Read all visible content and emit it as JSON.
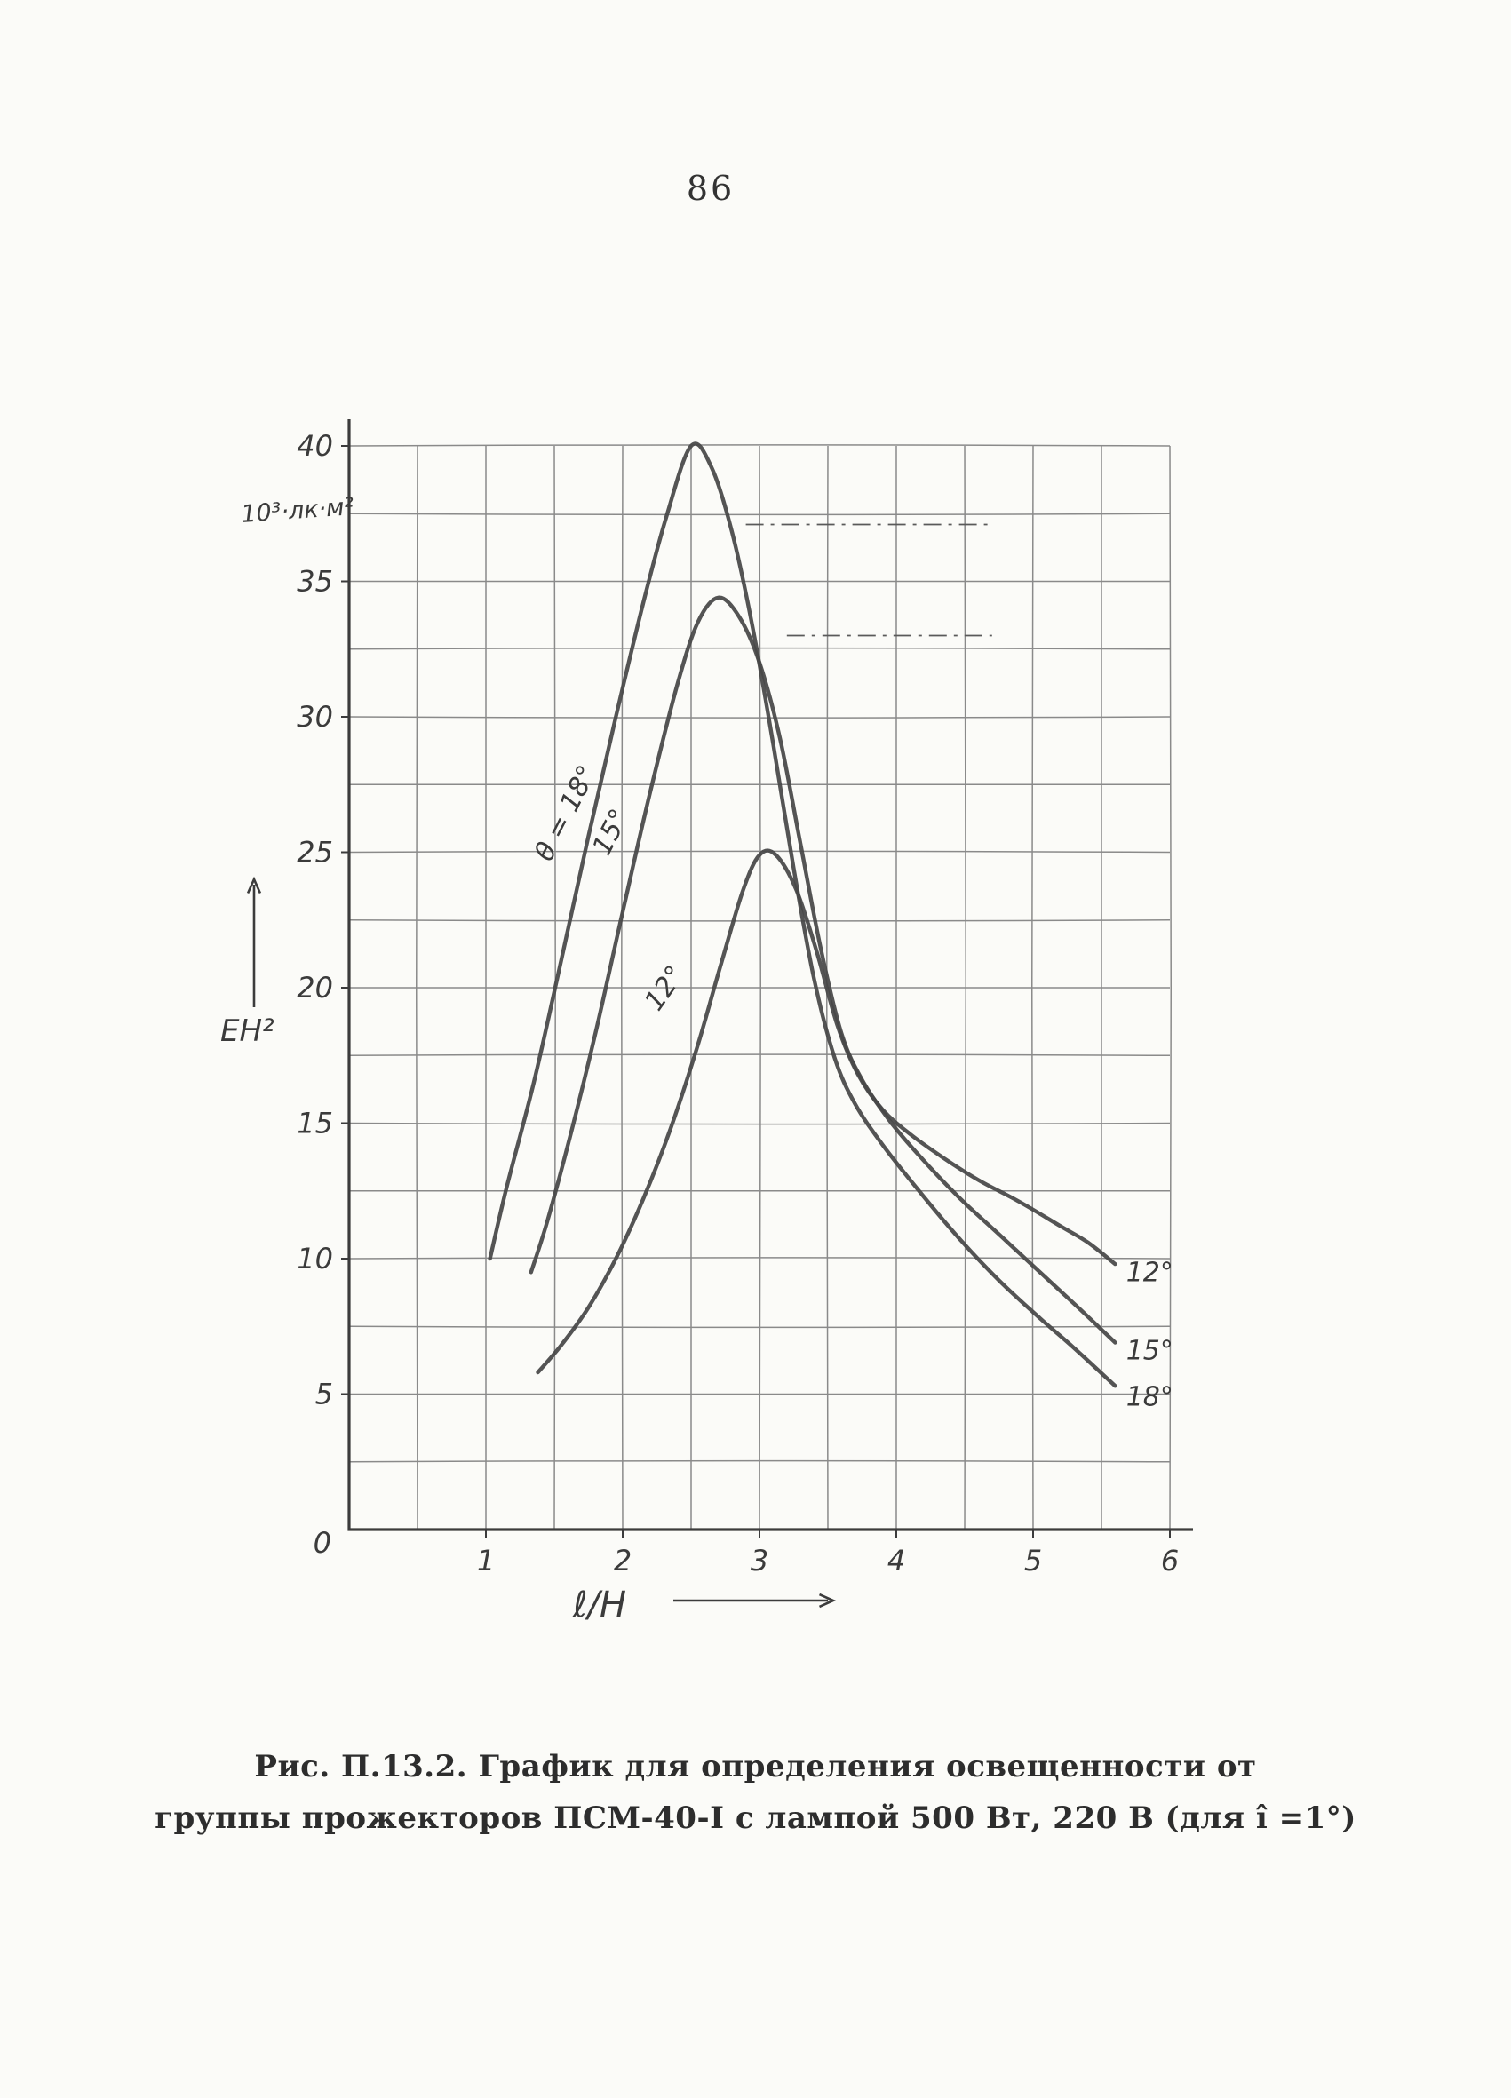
{
  "page": {
    "number": "86"
  },
  "chart_data": {
    "type": "line",
    "title": "",
    "xlabel": "ℓ/H",
    "ylabel": "EH²",
    "y_units_label": "10³·лк·м²",
    "origin_label": "0",
    "xlim": [
      0,
      6
    ],
    "ylim": [
      0,
      40
    ],
    "x_ticks": [
      1,
      2,
      3,
      4,
      5,
      6
    ],
    "y_ticks": [
      5,
      10,
      15,
      20,
      25,
      30,
      35,
      40
    ],
    "x_grid_step": 0.5,
    "y_grid_step": 2.5,
    "grid": true,
    "legend_position": "labels-on-curves",
    "series": [
      {
        "id": "18deg",
        "name": "θ = 18°",
        "points": [
          [
            1.03,
            10
          ],
          [
            1.15,
            12.6
          ],
          [
            1.35,
            16.5
          ],
          [
            1.55,
            21.0
          ],
          [
            1.75,
            25.6
          ],
          [
            1.95,
            30.0
          ],
          [
            2.15,
            34.2
          ],
          [
            2.32,
            37.4
          ],
          [
            2.5,
            40.0
          ],
          [
            2.65,
            39.2
          ],
          [
            2.8,
            36.8
          ],
          [
            2.95,
            33.3
          ],
          [
            3.1,
            29.0
          ],
          [
            3.25,
            24.4
          ],
          [
            3.4,
            20.3
          ],
          [
            3.55,
            17.4
          ],
          [
            3.7,
            15.7
          ],
          [
            3.9,
            14.2
          ],
          [
            4.15,
            12.6
          ],
          [
            4.45,
            10.8
          ],
          [
            4.75,
            9.2
          ],
          [
            5.05,
            7.8
          ],
          [
            5.3,
            6.7
          ],
          [
            5.6,
            5.3
          ]
        ]
      },
      {
        "id": "15deg",
        "name": "15°",
        "points": [
          [
            1.33,
            9.5
          ],
          [
            1.45,
            11.4
          ],
          [
            1.62,
            14.6
          ],
          [
            1.8,
            18.3
          ],
          [
            2.0,
            22.8
          ],
          [
            2.2,
            27.2
          ],
          [
            2.4,
            31.2
          ],
          [
            2.55,
            33.5
          ],
          [
            2.7,
            34.4
          ],
          [
            2.85,
            33.7
          ],
          [
            3.0,
            32.0
          ],
          [
            3.15,
            29.2
          ],
          [
            3.3,
            25.3
          ],
          [
            3.45,
            21.4
          ],
          [
            3.6,
            18.3
          ],
          [
            3.75,
            16.6
          ],
          [
            3.95,
            15.1
          ],
          [
            4.15,
            13.9
          ],
          [
            4.45,
            12.3
          ],
          [
            4.75,
            10.9
          ],
          [
            5.05,
            9.5
          ],
          [
            5.35,
            8.1
          ],
          [
            5.6,
            6.9
          ]
        ]
      },
      {
        "id": "12deg",
        "name": "12°",
        "points": [
          [
            1.38,
            5.8
          ],
          [
            1.55,
            6.8
          ],
          [
            1.75,
            8.2
          ],
          [
            1.95,
            10.0
          ],
          [
            2.15,
            12.2
          ],
          [
            2.35,
            14.8
          ],
          [
            2.55,
            17.9
          ],
          [
            2.72,
            20.9
          ],
          [
            2.88,
            23.6
          ],
          [
            3.0,
            24.9
          ],
          [
            3.12,
            24.9
          ],
          [
            3.27,
            23.6
          ],
          [
            3.42,
            21.3
          ],
          [
            3.57,
            18.6
          ],
          [
            3.72,
            16.8
          ],
          [
            3.9,
            15.5
          ],
          [
            4.1,
            14.6
          ],
          [
            4.35,
            13.7
          ],
          [
            4.6,
            12.9
          ],
          [
            4.9,
            12.1
          ],
          [
            5.2,
            11.2
          ],
          [
            5.4,
            10.6
          ],
          [
            5.6,
            9.8
          ]
        ]
      }
    ],
    "curve_labels": [
      {
        "text": "θ = 18°",
        "x": 1.64,
        "y": 26.3,
        "rotate": -63
      },
      {
        "text": "15°",
        "x": 1.97,
        "y": 25.6,
        "rotate": -63
      },
      {
        "text": "12°",
        "x": 2.36,
        "y": 19.8,
        "rotate": -55
      }
    ],
    "right_labels": [
      {
        "text": "12°",
        "x": 5.68,
        "y": 9.5
      },
      {
        "text": "15°",
        "x": 5.68,
        "y": 6.6
      },
      {
        "text": "18°",
        "x": 5.68,
        "y": 4.9
      }
    ],
    "guide_lines": [
      {
        "y": 37.1,
        "x1": 2.9,
        "x2": 4.7
      },
      {
        "y": 33.0,
        "x1": 3.2,
        "x2": 4.7
      }
    ]
  },
  "caption": {
    "line1": "Рис. П.13.2. График для определения освещенности от",
    "line2": "группы прожекторов ПСМ-40-I с лампой 500 Вт, 220 В (для î =1°)"
  }
}
